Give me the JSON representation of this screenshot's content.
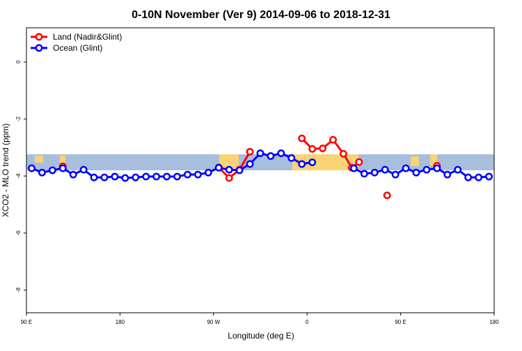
{
  "chart_data": {
    "type": "line",
    "title": "0-10N November (Ver 9)   2014-09-06 to 2018-12-31",
    "x_label": "Longitude (deg E)",
    "y_label": "XCO2 - MLO trend (ppm)",
    "xlim": [
      90,
      540
    ],
    "xticks": [
      {
        "value": 90,
        "label": "90 E"
      },
      {
        "value": 180,
        "label": "180"
      },
      {
        "value": 270,
        "label": "90 W"
      },
      {
        "value": 360,
        "label": "0"
      },
      {
        "value": 450,
        "label": "90 E"
      },
      {
        "value": 540,
        "label": "180"
      }
    ],
    "ylim": [
      -8.8,
      1.2
    ],
    "yticks": [
      0,
      -2,
      -4,
      -6,
      -8
    ],
    "legend": "top-left",
    "series": [
      {
        "name": "Land (Nadir&Glint)",
        "color": "#ff0000",
        "x": [
          125,
          null,
          275,
          285,
          295,
          305,
          null,
          355,
          365,
          375,
          385,
          395,
          403,
          410,
          null,
          437,
          null,
          485
        ],
        "values": [
          -3.66,
          null,
          -3.7,
          -4.07,
          -3.78,
          -3.15,
          null,
          -2.68,
          -3.05,
          -3.03,
          -2.73,
          -3.22,
          -3.71,
          -3.51,
          null,
          -4.68,
          null,
          -3.64
        ]
      },
      {
        "name": "Ocean (Glint)",
        "color": "#0000ff",
        "x": [
          95,
          105,
          115,
          125,
          135,
          145,
          155,
          165,
          175,
          185,
          195,
          205,
          215,
          225,
          235,
          245,
          255,
          265,
          275,
          285,
          295,
          305,
          315,
          325,
          335,
          345,
          355,
          365,
          null,
          405,
          415,
          425,
          435,
          445,
          455,
          465,
          475,
          485,
          495,
          505,
          515,
          525,
          535
        ],
        "values": [
          -3.73,
          -3.88,
          -3.8,
          -3.73,
          -3.95,
          -3.78,
          -4.05,
          -4.05,
          -4.02,
          -4.07,
          -4.05,
          -4.02,
          -4.02,
          -4.02,
          -4.02,
          -3.95,
          -3.95,
          -3.88,
          -3.71,
          -3.78,
          -3.8,
          -3.58,
          -3.2,
          -3.3,
          -3.2,
          -3.37,
          -3.58,
          -3.52,
          null,
          -3.73,
          -3.92,
          -3.88,
          -3.78,
          -3.95,
          -3.73,
          -3.88,
          -3.78,
          -3.73,
          -3.95,
          -3.78,
          -4.05,
          -4.05,
          -4.02
        ]
      }
    ]
  }
}
